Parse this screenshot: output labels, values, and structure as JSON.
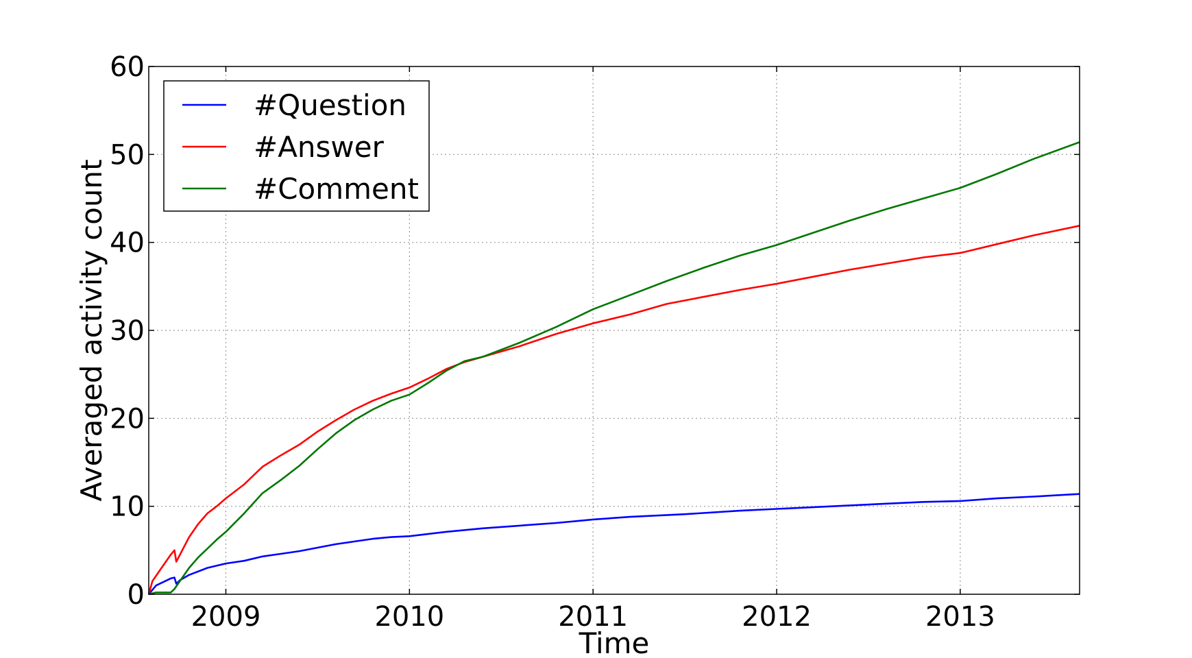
{
  "chart_data": {
    "type": "line",
    "title": "",
    "xlabel": "Time",
    "ylabel": "Averaged activity count",
    "xlim": [
      2008.58,
      2013.65
    ],
    "ylim": [
      0,
      60
    ],
    "x_ticks": [
      2009,
      2010,
      2011,
      2012,
      2013
    ],
    "x_tick_labels": [
      "2009",
      "2010",
      "2011",
      "2012",
      "2013"
    ],
    "y_ticks": [
      0,
      10,
      20,
      30,
      40,
      50,
      60
    ],
    "y_tick_labels": [
      "0",
      "10",
      "20",
      "30",
      "40",
      "50",
      "60"
    ],
    "grid": true,
    "legend_position": "upper-left",
    "series": [
      {
        "name": "#Question",
        "color": "#0000ff",
        "points": [
          [
            2008.58,
            0
          ],
          [
            2008.62,
            1.0
          ],
          [
            2008.7,
            1.8
          ],
          [
            2008.72,
            1.9
          ],
          [
            2008.73,
            1.2
          ],
          [
            2008.75,
            1.6
          ],
          [
            2008.8,
            2.2
          ],
          [
            2008.9,
            3.0
          ],
          [
            2009.0,
            3.5
          ],
          [
            2009.1,
            3.8
          ],
          [
            2009.2,
            4.3
          ],
          [
            2009.3,
            4.6
          ],
          [
            2009.4,
            4.9
          ],
          [
            2009.5,
            5.3
          ],
          [
            2009.6,
            5.7
          ],
          [
            2009.7,
            6.0
          ],
          [
            2009.8,
            6.3
          ],
          [
            2009.9,
            6.5
          ],
          [
            2010.0,
            6.6
          ],
          [
            2010.2,
            7.1
          ],
          [
            2010.4,
            7.5
          ],
          [
            2010.6,
            7.8
          ],
          [
            2010.8,
            8.1
          ],
          [
            2011.0,
            8.5
          ],
          [
            2011.2,
            8.8
          ],
          [
            2011.5,
            9.1
          ],
          [
            2011.8,
            9.5
          ],
          [
            2012.0,
            9.7
          ],
          [
            2012.3,
            10.0
          ],
          [
            2012.6,
            10.3
          ],
          [
            2012.8,
            10.5
          ],
          [
            2013.0,
            10.6
          ],
          [
            2013.2,
            10.9
          ],
          [
            2013.4,
            11.1
          ],
          [
            2013.65,
            11.4
          ]
        ]
      },
      {
        "name": "#Answer",
        "color": "#ff0000",
        "points": [
          [
            2008.58,
            0
          ],
          [
            2008.6,
            1.5
          ],
          [
            2008.65,
            3.0
          ],
          [
            2008.7,
            4.5
          ],
          [
            2008.72,
            5.0
          ],
          [
            2008.73,
            3.7
          ],
          [
            2008.75,
            4.5
          ],
          [
            2008.8,
            6.5
          ],
          [
            2008.85,
            8.0
          ],
          [
            2008.9,
            9.2
          ],
          [
            2008.95,
            10.0
          ],
          [
            2009.0,
            10.9
          ],
          [
            2009.1,
            12.5
          ],
          [
            2009.2,
            14.5
          ],
          [
            2009.3,
            15.8
          ],
          [
            2009.4,
            17.0
          ],
          [
            2009.5,
            18.5
          ],
          [
            2009.6,
            19.8
          ],
          [
            2009.7,
            21.0
          ],
          [
            2009.8,
            22.0
          ],
          [
            2009.9,
            22.8
          ],
          [
            2010.0,
            23.5
          ],
          [
            2010.1,
            24.5
          ],
          [
            2010.2,
            25.6
          ],
          [
            2010.3,
            26.4
          ],
          [
            2010.4,
            27.0
          ],
          [
            2010.6,
            28.2
          ],
          [
            2010.8,
            29.6
          ],
          [
            2011.0,
            30.8
          ],
          [
            2011.2,
            31.8
          ],
          [
            2011.4,
            33.0
          ],
          [
            2011.6,
            33.8
          ],
          [
            2011.8,
            34.6
          ],
          [
            2012.0,
            35.3
          ],
          [
            2012.2,
            36.1
          ],
          [
            2012.4,
            36.9
          ],
          [
            2012.6,
            37.6
          ],
          [
            2012.8,
            38.3
          ],
          [
            2013.0,
            38.8
          ],
          [
            2013.2,
            39.8
          ],
          [
            2013.4,
            40.8
          ],
          [
            2013.65,
            41.9
          ]
        ]
      },
      {
        "name": "#Comment",
        "color": "#007700",
        "points": [
          [
            2008.58,
            0
          ],
          [
            2008.62,
            0.2
          ],
          [
            2008.7,
            0.2
          ],
          [
            2008.72,
            0.6
          ],
          [
            2008.75,
            1.5
          ],
          [
            2008.8,
            3.0
          ],
          [
            2008.85,
            4.2
          ],
          [
            2008.9,
            5.2
          ],
          [
            2008.95,
            6.2
          ],
          [
            2009.0,
            7.1
          ],
          [
            2009.1,
            9.2
          ],
          [
            2009.2,
            11.5
          ],
          [
            2009.3,
            13.0
          ],
          [
            2009.4,
            14.6
          ],
          [
            2009.5,
            16.5
          ],
          [
            2009.6,
            18.3
          ],
          [
            2009.7,
            19.8
          ],
          [
            2009.8,
            21.0
          ],
          [
            2009.9,
            22.0
          ],
          [
            2010.0,
            22.7
          ],
          [
            2010.1,
            24.0
          ],
          [
            2010.2,
            25.4
          ],
          [
            2010.3,
            26.5
          ],
          [
            2010.4,
            27.0
          ],
          [
            2010.6,
            28.6
          ],
          [
            2010.8,
            30.4
          ],
          [
            2011.0,
            32.4
          ],
          [
            2011.2,
            34.0
          ],
          [
            2011.4,
            35.6
          ],
          [
            2011.6,
            37.1
          ],
          [
            2011.8,
            38.5
          ],
          [
            2012.0,
            39.7
          ],
          [
            2012.2,
            41.1
          ],
          [
            2012.4,
            42.5
          ],
          [
            2012.6,
            43.8
          ],
          [
            2012.8,
            45.0
          ],
          [
            2013.0,
            46.2
          ],
          [
            2013.2,
            47.8
          ],
          [
            2013.4,
            49.5
          ],
          [
            2013.65,
            51.4
          ]
        ]
      }
    ]
  }
}
